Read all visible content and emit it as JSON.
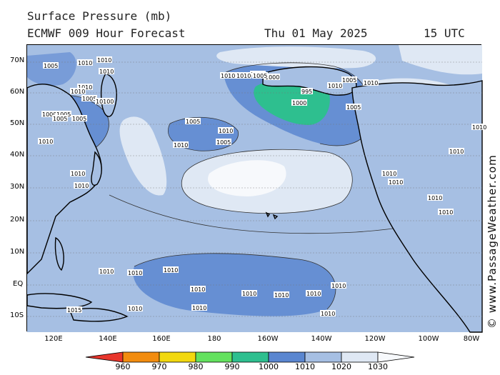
{
  "header": {
    "title": "Surface Pressure (mb)",
    "model": "ECMWF 009 Hour Forecast",
    "date": "Thu 01 May 2025",
    "time": "15 UTC"
  },
  "credit": "© www.PassageWeather.com",
  "lat_labels": [
    "70N",
    "60N",
    "50N",
    "40N",
    "30N",
    "20N",
    "10N",
    "EQ",
    "10S"
  ],
  "lon_labels": [
    "120E",
    "140E",
    "160E",
    "180",
    "160W",
    "140W",
    "120W",
    "100W",
    "80W"
  ],
  "colorbar": {
    "ticks": [
      "960",
      "970",
      "980",
      "990",
      "1000",
      "1010",
      "1020",
      "1030"
    ],
    "colors": [
      "#e8362c",
      "#f28c0f",
      "#f2d80f",
      "#63e15e",
      "#2ebf8f",
      "#5a86d0",
      "#a6bfe3",
      "#dfe8f4",
      "#f7f9fc"
    ]
  },
  "colors": {
    "ocean": "#a6bfe3",
    "low_1000": "#5a86d0",
    "low_990": "#2ebf8f",
    "high_1020": "#dfe8f4",
    "land_outline": "#000000"
  },
  "isobar_labels": [
    {
      "t": "1005"
    },
    {
      "t": "1010"
    },
    {
      "t": "1010"
    },
    {
      "t": "1010"
    },
    {
      "t": "1010"
    },
    {
      "t": "1010"
    },
    {
      "t": "1005"
    },
    {
      "t": "1010"
    },
    {
      "t": "1000"
    },
    {
      "t": "1000"
    },
    {
      "t": "995"
    },
    {
      "t": "1000"
    },
    {
      "t": "1005"
    },
    {
      "t": "1010"
    },
    {
      "t": "1005"
    },
    {
      "t": "1010"
    },
    {
      "t": "1005"
    },
    {
      "t": "1010"
    },
    {
      "t": "1010"
    },
    {
      "t": "1005"
    },
    {
      "t": "1010"
    },
    {
      "t": "1005"
    },
    {
      "t": "1005"
    },
    {
      "t": "1010"
    },
    {
      "t": "1010"
    },
    {
      "t": "1005"
    },
    {
      "t": "1010"
    },
    {
      "t": "1010"
    },
    {
      "t": "1010"
    },
    {
      "t": "1010"
    },
    {
      "t": "1010"
    },
    {
      "t": "1010"
    },
    {
      "t": "1010"
    },
    {
      "t": "1010"
    },
    {
      "t": "1010"
    },
    {
      "t": "1010"
    },
    {
      "t": "1010"
    },
    {
      "t": "1015"
    },
    {
      "t": "1010"
    },
    {
      "t": "1010"
    },
    {
      "t": "1010"
    },
    {
      "t": "1010"
    },
    {
      "t": "1010"
    },
    {
      "t": "1010"
    },
    {
      "t": "1010"
    },
    {
      "t": "1010"
    },
    {
      "t": "1005"
    },
    {
      "t": "1010"
    },
    {
      "t": "1010"
    }
  ]
}
